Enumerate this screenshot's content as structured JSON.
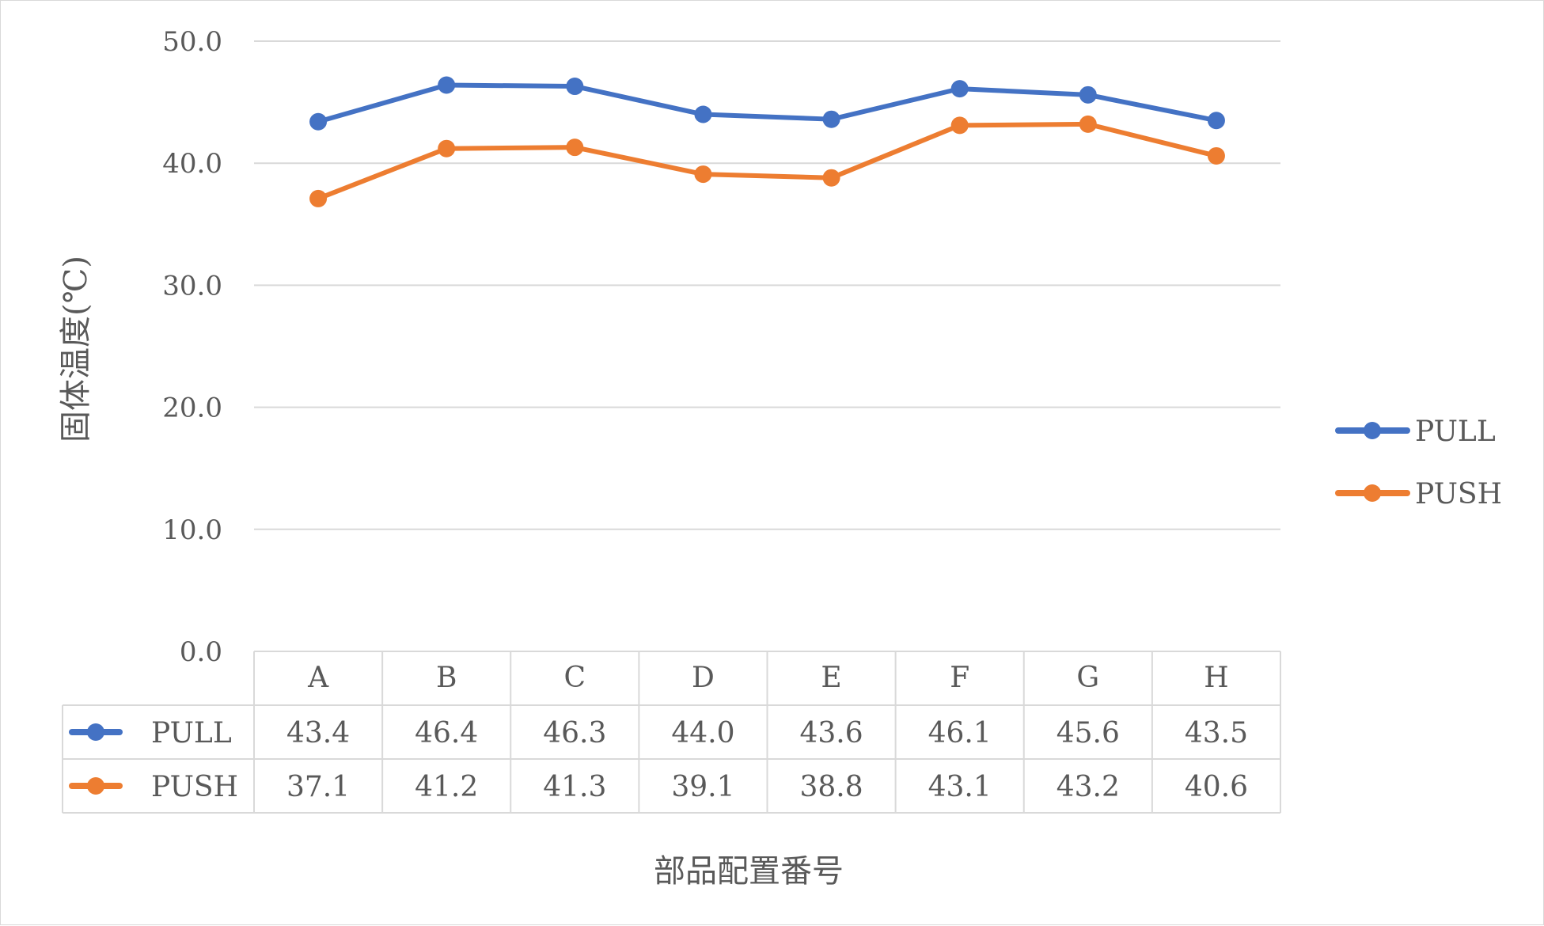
{
  "chart_data": {
    "type": "line",
    "categories": [
      "A",
      "B",
      "C",
      "D",
      "E",
      "F",
      "G",
      "H"
    ],
    "series": [
      {
        "name": "PULL",
        "color": "#4472C4",
        "values": [
          43.4,
          46.4,
          46.3,
          44.0,
          43.6,
          46.1,
          45.6,
          43.5
        ]
      },
      {
        "name": "PUSH",
        "color": "#ED7D31",
        "values": [
          37.1,
          41.2,
          41.3,
          39.1,
          38.8,
          43.1,
          43.2,
          40.6
        ]
      }
    ],
    "ylim": [
      0,
      50
    ],
    "yticks": [
      "0.0",
      "10.0",
      "20.0",
      "30.0",
      "40.0",
      "50.0"
    ],
    "ylabel": "固体温度(℃)",
    "xlabel": "部品配置番号",
    "legend": "right",
    "data_table": true,
    "grid": true
  }
}
